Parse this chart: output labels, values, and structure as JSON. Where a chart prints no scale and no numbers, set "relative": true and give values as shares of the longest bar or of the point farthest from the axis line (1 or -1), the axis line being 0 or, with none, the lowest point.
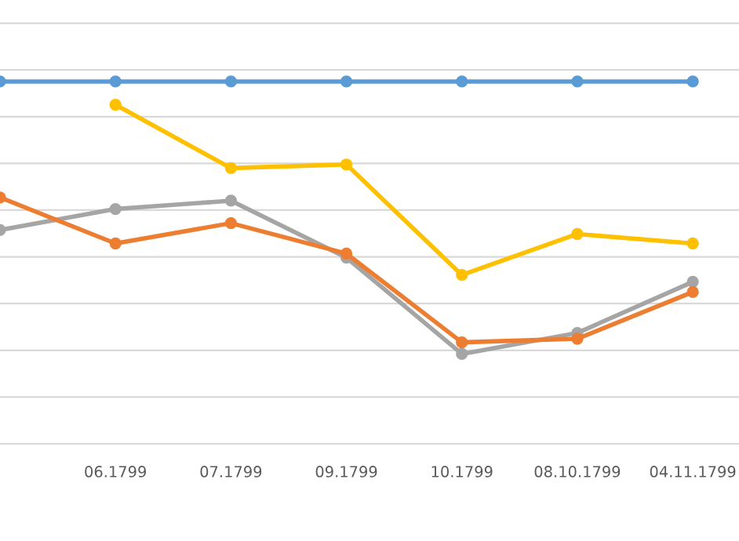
{
  "chart_data": {
    "type": "line",
    "relative": true,
    "categories": [
      null,
      "06.1799",
      "07.1799",
      "09.1799",
      "10.1799",
      "08.10.1799",
      "04.11.1799"
    ],
    "marker": "circle",
    "line_style": "solid",
    "grid": "y",
    "legend": false,
    "series": [
      {
        "color": "#5b9bd5",
        "values": [
          1,
          1,
          1,
          1,
          1,
          1,
          1
        ]
      },
      {
        "color": "#ed7d31",
        "values": [
          0.68,
          0.553,
          0.609,
          0.525,
          0.28,
          0.29,
          0.419
        ]
      },
      {
        "color": "#a5a5a5",
        "values": [
          0.59,
          0.648,
          0.671,
          0.514,
          0.248,
          0.306,
          0.447
        ]
      },
      {
        "color": "#ffc000",
        "values": [
          null,
          0.936,
          0.761,
          0.771,
          0.466,
          0.579,
          0.553
        ]
      }
    ]
  }
}
